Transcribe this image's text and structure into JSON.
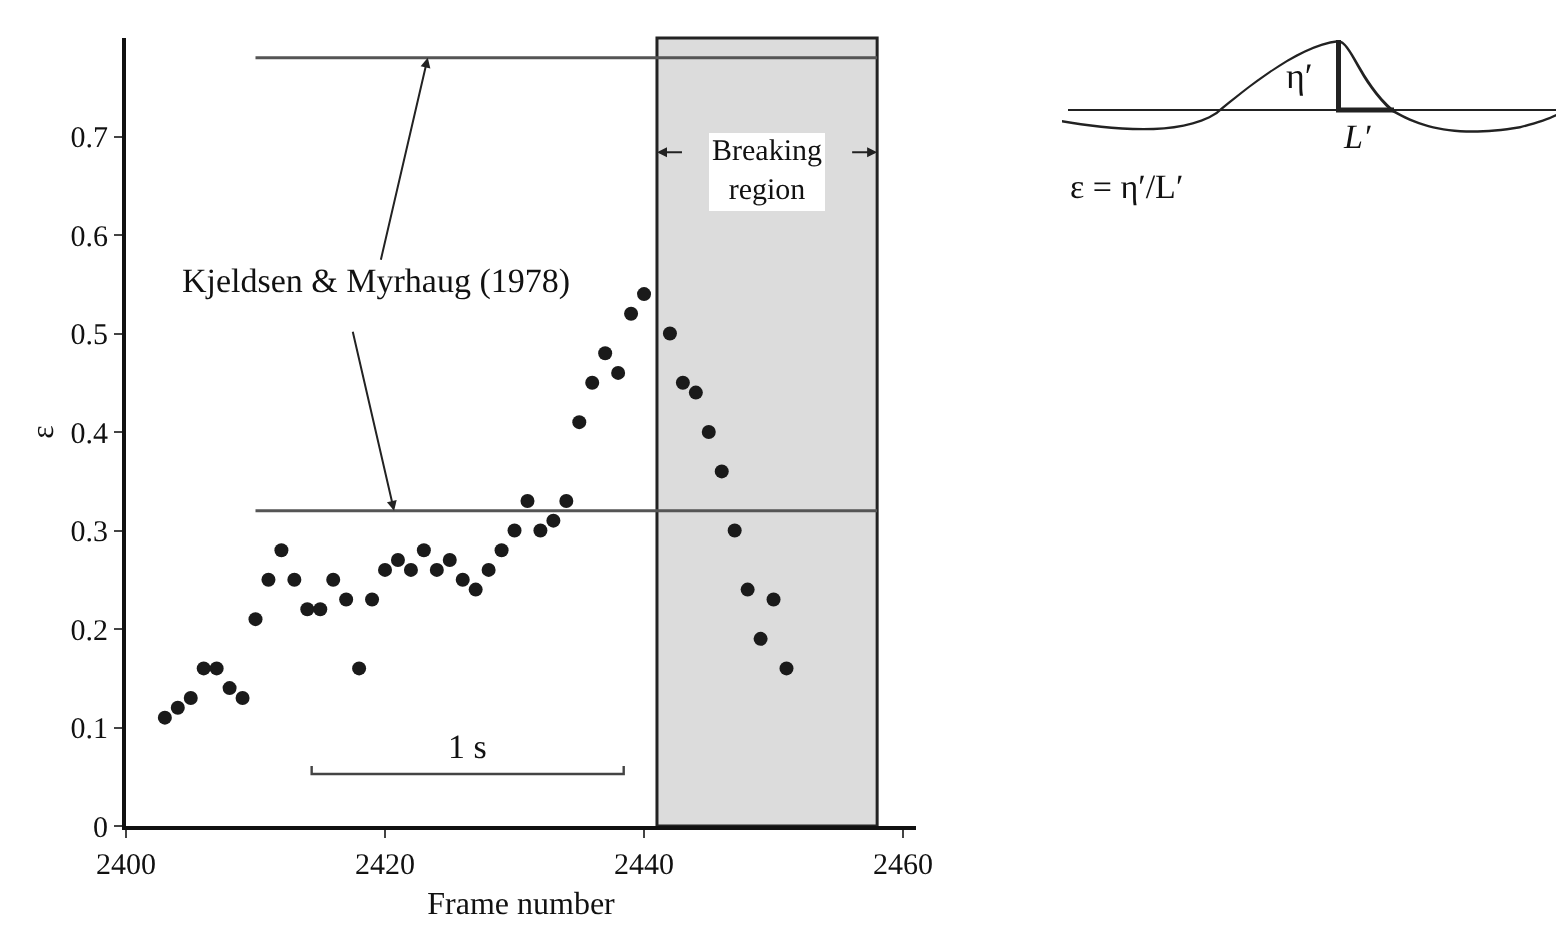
{
  "chart_data": {
    "type": "scatter",
    "xlabel": "Frame number",
    "ylabel": "ε",
    "x": [
      2403,
      2404,
      2405,
      2406,
      2407,
      2408,
      2409,
      2410,
      2411,
      2412,
      2413,
      2414,
      2415,
      2416,
      2417,
      2418,
      2419,
      2420,
      2421,
      2422,
      2423,
      2424,
      2425,
      2426,
      2427,
      2428,
      2429,
      2430,
      2431,
      2432,
      2433,
      2434,
      2435,
      2436,
      2437,
      2438,
      2439,
      2440,
      2442,
      2443,
      2444,
      2445,
      2446,
      2447,
      2448,
      2449,
      2450,
      2451
    ],
    "series": [
      {
        "color": "#1a1a1a",
        "values": [
          0.11,
          0.12,
          0.13,
          0.16,
          0.16,
          0.14,
          0.13,
          0.21,
          0.25,
          0.28,
          0.25,
          0.22,
          0.22,
          0.25,
          0.23,
          0.16,
          0.23,
          0.26,
          0.27,
          0.26,
          0.28,
          0.26,
          0.27,
          0.25,
          0.24,
          0.26,
          0.28,
          0.3,
          0.33,
          0.3,
          0.31,
          0.33,
          0.41,
          0.45,
          0.48,
          0.46,
          0.52,
          0.54,
          0.5,
          0.45,
          0.44,
          0.4,
          0.36,
          0.3,
          0.24,
          0.19,
          0.23,
          0.16
        ]
      }
    ],
    "marker": "circle",
    "xlim": [
      2400,
      2461
    ],
    "xticks": [
      2400,
      2420,
      2440,
      2460
    ],
    "ylim": [
      0,
      0.8
    ],
    "yticks": [
      0,
      0.1,
      0.2,
      0.3,
      0.4,
      0.5,
      0.6,
      0.7
    ],
    "ref_lines": [
      {
        "axis": "y",
        "value": 0.78,
        "color": "#555555"
      },
      {
        "axis": "y",
        "value": 0.32,
        "color": "#555555"
      }
    ],
    "bands": [
      {
        "axis": "x",
        "from": 2441,
        "to": 2458,
        "label": "Breaking region",
        "color": "#dcdcdc"
      }
    ],
    "annotations": [
      {
        "text": "Kjeldsen & Myrhaug (1978)",
        "x": 2423.3,
        "y": 0.78
      },
      "1 s",
      "η′",
      "L′",
      "ε = η′/L′"
    ],
    "grid": false
  }
}
